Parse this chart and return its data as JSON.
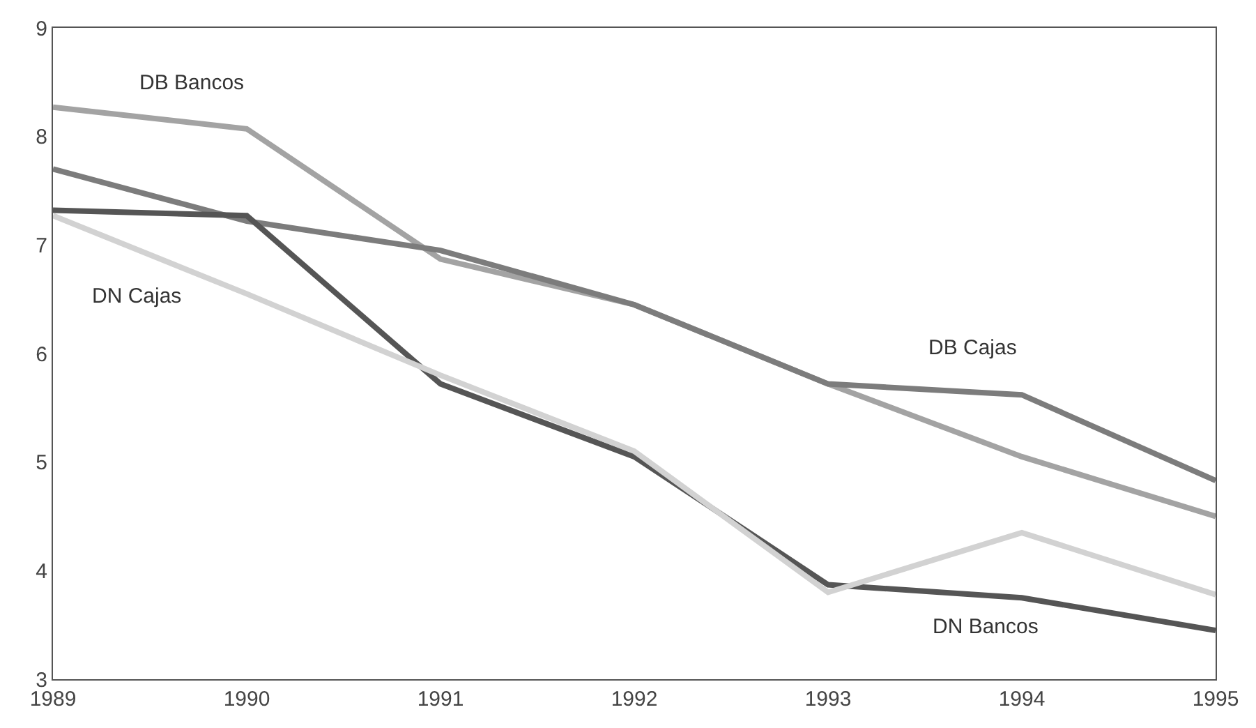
{
  "chart_data": {
    "type": "line",
    "x": [
      1989,
      1990,
      1991,
      1992,
      1993,
      1994,
      1995
    ],
    "xlim": [
      1989,
      1995
    ],
    "xticks": [
      1989,
      1990,
      1991,
      1992,
      1993,
      1994,
      1995
    ],
    "ylim": [
      3,
      9
    ],
    "yticks": [
      3,
      4,
      5,
      6,
      7,
      8,
      9
    ],
    "legend": false,
    "marker": "none",
    "line_style": "solid",
    "series": [
      {
        "name": "DB Bancos",
        "color": "#a3a3a3",
        "values": [
          8.27,
          8.07,
          6.87,
          6.45,
          5.72,
          5.05,
          4.5
        ]
      },
      {
        "name": "DB Cajas",
        "color": "#7c7c7c",
        "values": [
          7.7,
          7.22,
          6.95,
          6.45,
          5.72,
          5.62,
          4.83
        ]
      },
      {
        "name": "DN Bancos",
        "color": "#555555",
        "values": [
          7.32,
          7.27,
          5.72,
          5.05,
          3.87,
          3.75,
          3.45
        ]
      },
      {
        "name": "DN Cajas",
        "color": "#d2d2d2",
        "values": [
          7.27,
          6.55,
          5.8,
          5.1,
          3.8,
          4.35,
          3.78
        ]
      }
    ]
  }
}
